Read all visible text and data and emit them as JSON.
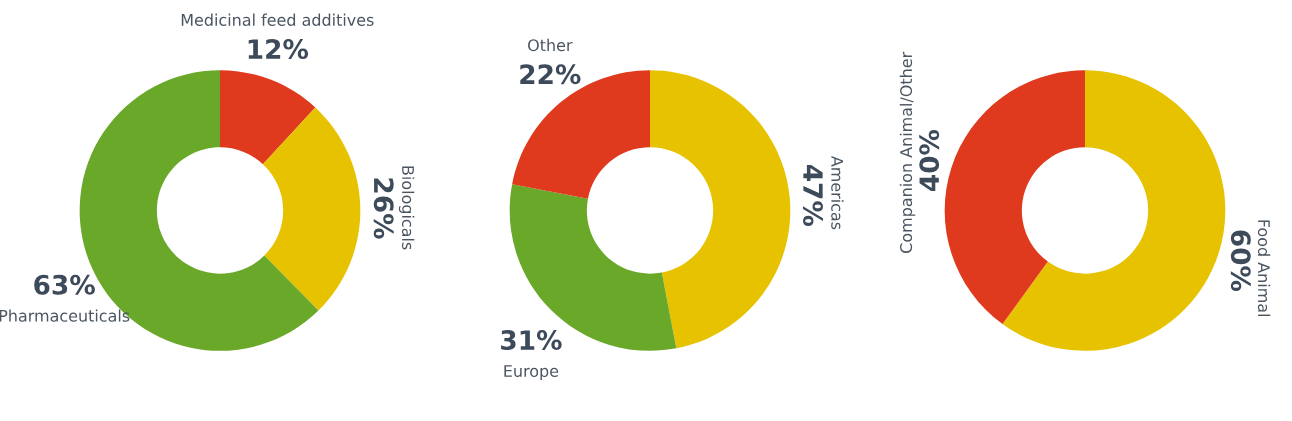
{
  "chart_data": [
    {
      "type": "donut",
      "categories": [
        "Medicinal feed additives",
        "Biologicals",
        "Pharmaceuticals"
      ],
      "values": [
        12,
        26,
        63
      ],
      "value_labels": [
        "12%",
        "26%",
        "63%"
      ],
      "colors": [
        "#e03a1e",
        "#e6c200",
        "#6aa82a"
      ]
    },
    {
      "type": "donut",
      "categories": [
        "Americas",
        "Europe",
        "Other"
      ],
      "values": [
        47,
        31,
        22
      ],
      "value_labels": [
        "47%",
        "31%",
        "22%"
      ],
      "colors": [
        "#e6c200",
        "#6aa82a",
        "#e03a1e"
      ]
    },
    {
      "type": "donut",
      "categories": [
        "Food Animal",
        "Companion Animal/Other"
      ],
      "values": [
        60,
        40
      ],
      "value_labels": [
        "60%",
        "40%"
      ],
      "colors": [
        "#e6c200",
        "#e03a1e"
      ]
    }
  ]
}
